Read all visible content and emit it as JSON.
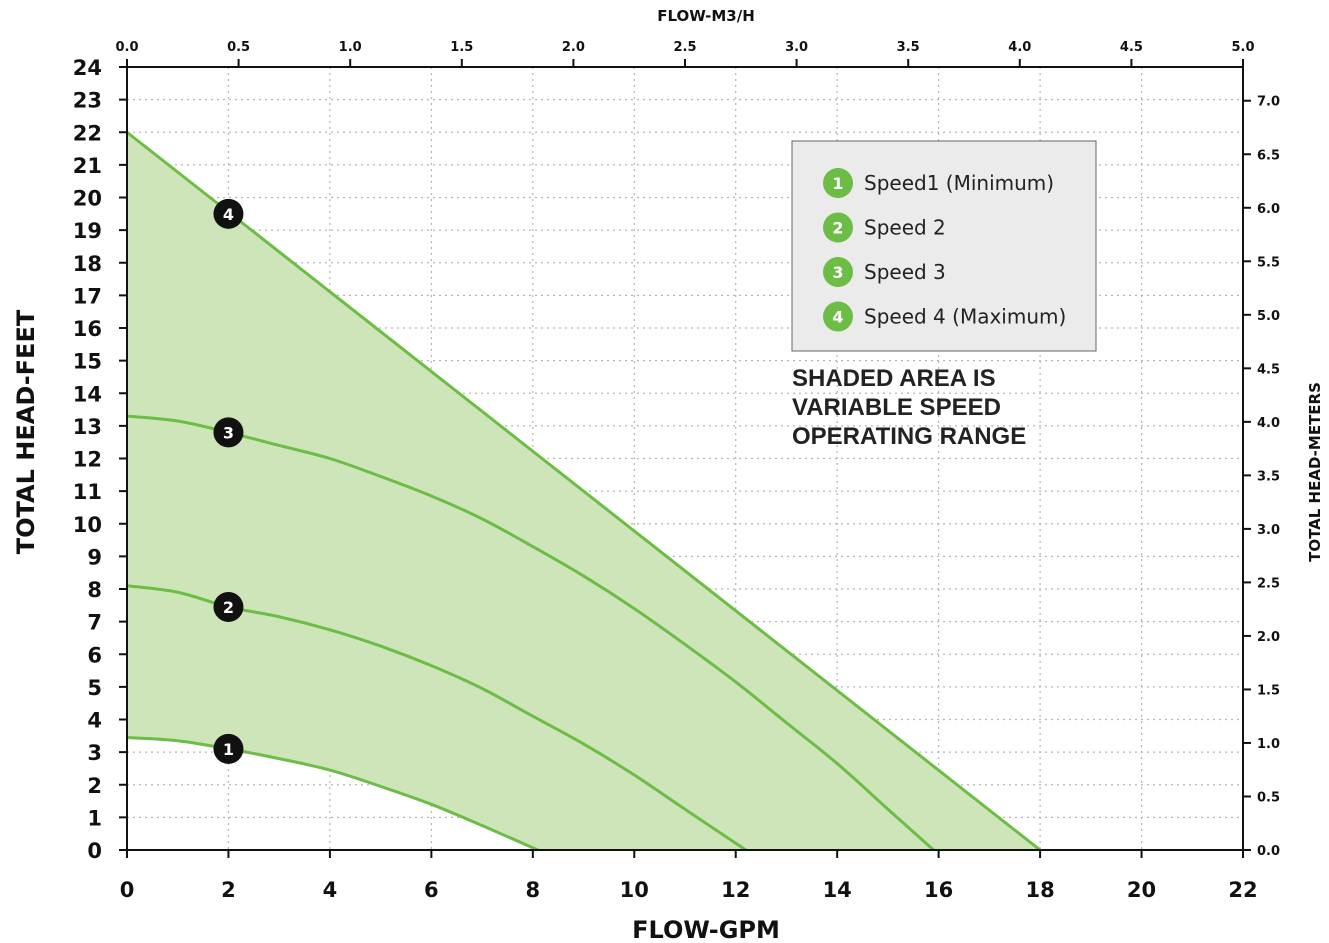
{
  "chart_data": {
    "type": "line",
    "title": "",
    "xlabel": "FLOW-GPM",
    "ylabel": "TOTAL HEAD-FEET",
    "x2label": "FLOW-M3/H",
    "y2label": "TOTAL HEAD-METERS",
    "xlim": [
      0,
      22
    ],
    "ylim": [
      0,
      24
    ],
    "x2lim": [
      0,
      5
    ],
    "y2lim": [
      0,
      7.3152
    ],
    "x_ticks": [
      "0",
      "2",
      "4",
      "6",
      "8",
      "10",
      "12",
      "14",
      "16",
      "18",
      "20",
      "22"
    ],
    "y_ticks": [
      "0",
      "1",
      "2",
      "3",
      "4",
      "5",
      "6",
      "7",
      "8",
      "9",
      "10",
      "11",
      "12",
      "13",
      "14",
      "15",
      "16",
      "17",
      "18",
      "19",
      "20",
      "21",
      "22",
      "23",
      "24"
    ],
    "x2_ticks": [
      "0.0",
      "0.5",
      "1.0",
      "1.5",
      "2.0",
      "2.5",
      "3.0",
      "3.5",
      "4.0",
      "4.5",
      "5.0"
    ],
    "y2_ticks": [
      "0.0",
      "0.5",
      "1.0",
      "1.5",
      "2.0",
      "2.5",
      "3.0",
      "3.5",
      "4.0",
      "4.5",
      "5.0",
      "5.5",
      "6.0",
      "6.5",
      "7.0"
    ],
    "grid": true,
    "shaded_region": "variable speed operating range between Speed 1 and Speed 4 curves",
    "series": [
      {
        "name": "Speed1 (Minimum)",
        "marker": "1",
        "marker_x": 2,
        "marker_y": 3.1,
        "x": [
          0,
          1,
          2,
          3,
          4,
          5,
          6,
          7,
          8.1
        ],
        "y": [
          3.45,
          3.35,
          3.1,
          2.8,
          2.45,
          1.95,
          1.4,
          0.75,
          0
        ]
      },
      {
        "name": "Speed 2",
        "marker": "2",
        "marker_x": 2,
        "marker_y": 7.45,
        "x": [
          0,
          1,
          2,
          3,
          4,
          5,
          6,
          7,
          8,
          9,
          10,
          11,
          12.2
        ],
        "y": [
          8.1,
          7.9,
          7.45,
          7.15,
          6.75,
          6.25,
          5.65,
          4.95,
          4.1,
          3.25,
          2.3,
          1.25,
          0
        ]
      },
      {
        "name": "Speed 3",
        "marker": "3",
        "marker_x": 2,
        "marker_y": 12.8,
        "x": [
          0,
          1,
          2,
          3,
          4,
          5,
          6,
          7,
          8,
          9,
          10,
          11,
          12,
          13,
          14,
          15,
          15.9
        ],
        "y": [
          13.3,
          13.15,
          12.8,
          12.4,
          12.0,
          11.45,
          10.85,
          10.15,
          9.3,
          8.4,
          7.4,
          6.3,
          5.15,
          3.9,
          2.65,
          1.25,
          0
        ]
      },
      {
        "name": "Speed 4  (Maximum)",
        "marker": "4",
        "marker_x": 2,
        "marker_y": 19.5,
        "x": [
          0,
          18
        ],
        "y": [
          22,
          0
        ]
      }
    ],
    "legend": {
      "placement": "top-right",
      "items": [
        {
          "num": "1",
          "label": "Speed1 (Minimum)"
        },
        {
          "num": "2",
          "label": "Speed 2"
        },
        {
          "num": "3",
          "label": "Speed 3"
        },
        {
          "num": "4",
          "label": "Speed 4  (Maximum)"
        }
      ]
    },
    "annotation": [
      "SHADED AREA IS",
      "VARIABLE SPEED",
      "OPERATING RANGE"
    ],
    "colors": {
      "curve": "#6cbd45",
      "fill": "#cbe4b5",
      "legend_badge": "#6cbd45",
      "marker": "#111111",
      "legend_bg": "#ebebeb",
      "grid": "#b5b5b5"
    }
  }
}
